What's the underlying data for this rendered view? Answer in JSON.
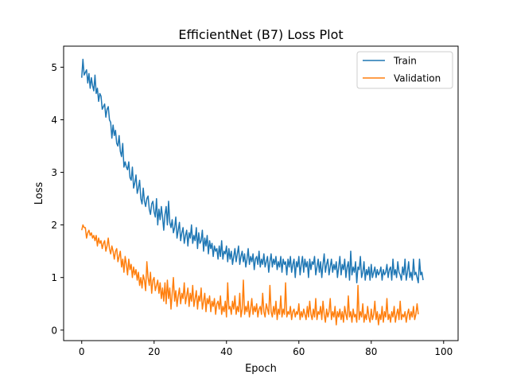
{
  "chart_data": {
    "type": "line",
    "title": "EfficientNet (B7) Loss Plot",
    "xlabel": "Epoch",
    "ylabel": "Loss",
    "xlim": [
      -5,
      104
    ],
    "ylim": [
      -0.2,
      5.4
    ],
    "xticks": [
      0,
      20,
      40,
      60,
      80,
      100
    ],
    "yticks": [
      0,
      1,
      2,
      3,
      4,
      5
    ],
    "grid": false,
    "legend_position": "top-right",
    "series": [
      {
        "name": "Train",
        "color": "#1f77b4",
        "x_start": 0,
        "x_step": 0.333333,
        "values": [
          4.8,
          5.15,
          4.85,
          4.9,
          4.95,
          4.7,
          4.88,
          4.6,
          4.8,
          4.65,
          4.55,
          4.85,
          4.5,
          4.6,
          4.35,
          4.5,
          4.45,
          4.2,
          4.25,
          4.3,
          4.05,
          4.2,
          4.25,
          4.0,
          3.95,
          3.65,
          3.9,
          3.7,
          3.8,
          3.55,
          3.5,
          3.7,
          3.4,
          3.3,
          3.55,
          3.1,
          3.2,
          3.1,
          3.05,
          3.2,
          2.9,
          2.85,
          3.1,
          2.7,
          2.8,
          2.95,
          2.6,
          2.7,
          2.85,
          2.5,
          2.4,
          2.7,
          2.45,
          2.35,
          2.5,
          2.55,
          2.3,
          2.2,
          2.4,
          2.45,
          2.25,
          2.15,
          2.5,
          2.0,
          2.3,
          2.1,
          2.35,
          2.15,
          1.9,
          2.2,
          2.35,
          2.0,
          2.45,
          2.05,
          1.95,
          2.1,
          1.85,
          1.95,
          2.15,
          1.75,
          1.9,
          2.05,
          1.7,
          1.85,
          1.95,
          1.65,
          1.8,
          1.9,
          1.6,
          1.85,
          1.75,
          2.0,
          1.65,
          1.8,
          1.7,
          1.95,
          1.55,
          1.85,
          1.65,
          1.7,
          1.9,
          1.5,
          1.75,
          1.6,
          1.8,
          1.45,
          1.7,
          1.55,
          1.65,
          1.4,
          1.6,
          1.5,
          1.55,
          1.35,
          1.6,
          1.4,
          1.7,
          1.35,
          1.5,
          1.45,
          1.6,
          1.3,
          1.55,
          1.35,
          1.5,
          1.25,
          1.4,
          1.55,
          1.3,
          1.45,
          1.6,
          1.25,
          1.4,
          1.5,
          1.3,
          1.45,
          1.2,
          1.35,
          1.55,
          1.25,
          1.4,
          1.3,
          1.45,
          1.15,
          1.35,
          1.4,
          1.25,
          1.5,
          1.2,
          1.35,
          1.25,
          1.45,
          1.2,
          1.3,
          1.4,
          1.1,
          1.3,
          1.45,
          1.2,
          1.35,
          1.25,
          1.4,
          1.15,
          1.3,
          1.2,
          1.4,
          1.1,
          1.35,
          1.25,
          1.3,
          1.05,
          1.35,
          1.2,
          1.4,
          1.1,
          1.25,
          1.35,
          1.0,
          1.3,
          1.2,
          1.4,
          1.05,
          1.25,
          1.4,
          1.1,
          1.35,
          1.2,
          1.3,
          1.0,
          1.35,
          1.15,
          1.3,
          1.25,
          1.4,
          1.05,
          1.2,
          1.35,
          1.1,
          1.3,
          1.0,
          1.25,
          1.45,
          1.1,
          1.25,
          1.35,
          1.05,
          1.2,
          1.35,
          1.1,
          1.25,
          1.15,
          1.3,
          1.0,
          1.2,
          1.4,
          1.05,
          1.25,
          1.15,
          1.35,
          1.0,
          1.2,
          1.3,
          0.95,
          1.5,
          1.05,
          1.2,
          1.1,
          1.3,
          0.9,
          1.2,
          1.15,
          1.4,
          1.0,
          1.1,
          1.3,
          0.95,
          1.15,
          1.05,
          1.2,
          0.95,
          1.25,
          1.0,
          1.1,
          1.2,
          1.0,
          1.15,
          1.05,
          1.1,
          1.2,
          0.95,
          1.15,
          1.05,
          1.1,
          1.25,
          1.0,
          1.15,
          1.2,
          0.95,
          1.35,
          1.05,
          1.15,
          1.0,
          1.3,
          1.1,
          1.05,
          0.95,
          1.2,
          1.05,
          1.35,
          0.95,
          1.1,
          1.3,
          1.0,
          1.1,
          0.95,
          1.35,
          1.05,
          1.1,
          1.0,
          0.9,
          1.35,
          1.05,
          1.1,
          0.95
        ]
      },
      {
        "name": "Validation",
        "color": "#ff7f0e",
        "x_start": 0,
        "x_step": 0.333333,
        "values": [
          1.9,
          2.0,
          1.95,
          1.95,
          1.75,
          1.85,
          1.9,
          1.8,
          1.85,
          1.75,
          1.8,
          1.7,
          1.8,
          1.6,
          1.75,
          1.65,
          1.7,
          1.55,
          1.65,
          1.7,
          1.5,
          1.6,
          1.75,
          1.55,
          1.45,
          1.6,
          1.5,
          1.35,
          1.5,
          1.55,
          1.3,
          1.4,
          1.5,
          1.2,
          1.35,
          1.1,
          1.4,
          1.25,
          1.05,
          1.35,
          1.15,
          1.25,
          1.0,
          1.2,
          1.05,
          1.15,
          0.95,
          1.1,
          0.85,
          1.0,
          0.8,
          1.05,
          0.95,
          0.75,
          1.3,
          1.0,
          0.85,
          1.1,
          0.7,
          0.95,
          1.0,
          0.75,
          0.85,
          0.95,
          0.7,
          0.9,
          0.6,
          0.8,
          0.55,
          0.9,
          0.5,
          0.95,
          0.6,
          0.8,
          0.4,
          0.7,
          1.0,
          0.55,
          0.75,
          0.45,
          0.65,
          0.8,
          0.5,
          0.7,
          0.6,
          0.9,
          0.5,
          0.65,
          0.8,
          0.45,
          0.7,
          0.55,
          0.85,
          0.45,
          0.6,
          0.75,
          0.4,
          0.65,
          0.55,
          0.8,
          0.4,
          0.55,
          0.7,
          0.35,
          0.6,
          0.5,
          0.65,
          0.35,
          0.55,
          0.45,
          0.6,
          0.3,
          0.5,
          0.55,
          0.4,
          0.65,
          0.3,
          0.45,
          0.35,
          0.55,
          0.25,
          0.9,
          0.4,
          0.45,
          0.3,
          0.55,
          0.4,
          0.65,
          0.3,
          0.45,
          0.35,
          0.7,
          0.25,
          0.4,
          0.95,
          0.3,
          0.45,
          0.35,
          0.55,
          0.25,
          0.4,
          0.6,
          0.3,
          0.45,
          0.35,
          0.5,
          0.25,
          0.4,
          0.45,
          0.3,
          0.7,
          0.35,
          0.25,
          0.5,
          0.4,
          0.3,
          0.85,
          0.35,
          0.25,
          0.45,
          0.3,
          0.55,
          0.2,
          0.4,
          0.3,
          0.65,
          0.25,
          0.4,
          0.3,
          0.9,
          0.25,
          0.35,
          0.3,
          0.45,
          0.2,
          0.35,
          0.4,
          0.25,
          0.35,
          0.3,
          0.5,
          0.2,
          0.35,
          0.25,
          0.4,
          0.3,
          0.2,
          0.45,
          0.25,
          0.55,
          0.3,
          0.2,
          0.4,
          0.25,
          0.6,
          0.2,
          0.35,
          0.3,
          0.45,
          0.2,
          0.55,
          0.3,
          0.15,
          0.4,
          0.25,
          0.35,
          0.6,
          0.2,
          0.35,
          0.25,
          0.45,
          0.1,
          0.35,
          0.25,
          0.4,
          0.2,
          0.35,
          0.15,
          0.45,
          0.3,
          0.2,
          0.65,
          0.25,
          0.35,
          0.15,
          0.4,
          0.25,
          0.3,
          0.15,
          0.85,
          0.2,
          0.35,
          0.25,
          0.5,
          0.15,
          0.3,
          0.2,
          0.45,
          0.25,
          0.15,
          0.4,
          0.2,
          0.3,
          0.55,
          0.2,
          0.35,
          0.1,
          0.3,
          0.2,
          0.45,
          0.15,
          0.35,
          0.25,
          0.6,
          0.2,
          0.3,
          0.15,
          0.35,
          0.25,
          0.45,
          0.15,
          0.3,
          0.4,
          0.2,
          0.55,
          0.2,
          0.3,
          0.25,
          0.35,
          0.15,
          0.3,
          0.4,
          0.2,
          0.35,
          0.25,
          0.45,
          0.2,
          0.3,
          0.5,
          0.3
        ]
      }
    ]
  }
}
